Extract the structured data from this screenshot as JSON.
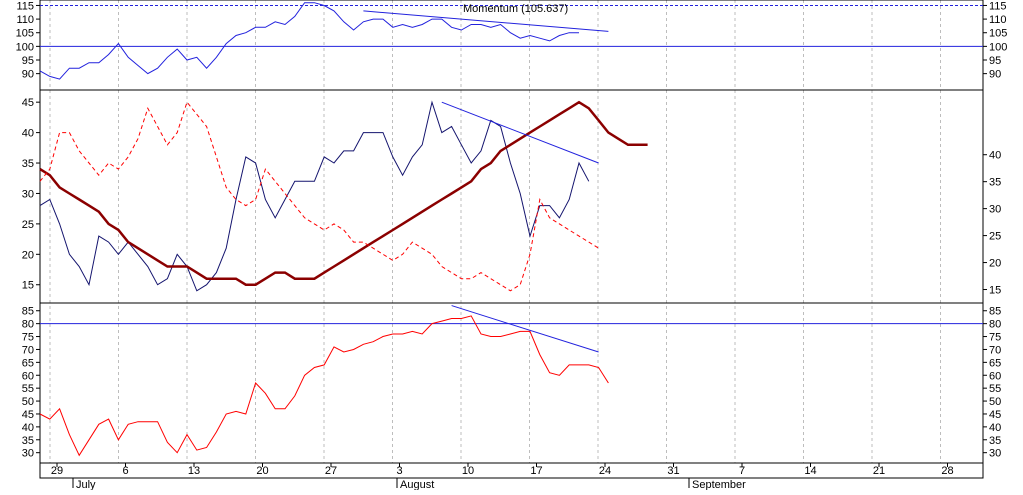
{
  "chart_data": {
    "type": "line",
    "x_axis": {
      "day_ticks": [
        "29",
        "6",
        "13",
        "20",
        "27",
        "3",
        "10",
        "17",
        "24",
        "31",
        "7",
        "14",
        "21",
        "28"
      ],
      "month_labels": [
        "July",
        "August",
        "September"
      ]
    },
    "panels": [
      {
        "id": "momentum",
        "title": "Momentum (105.637)",
        "ylim": [
          84,
          117
        ],
        "yticks": [
          90,
          95,
          100,
          105,
          110,
          115
        ],
        "reference_line": 100,
        "dashed_line": 115,
        "colors": {
          "series": "#2222dd",
          "reference": "#2222dd",
          "trend": "#2222dd"
        },
        "series": [
          {
            "values": [
              91,
              89,
              88,
              92,
              92,
              94,
              94,
              97,
              101,
              96,
              93,
              90,
              92,
              96,
              99,
              95,
              96,
              92,
              96,
              101,
              104,
              105,
              107,
              107,
              109,
              108,
              111,
              116,
              116,
              115,
              113,
              109,
              106,
              109,
              110,
              110,
              107,
              108,
              107,
              108,
              110,
              110,
              107,
              106,
              108,
              108,
              107,
              108,
              105,
              103,
              104,
              103,
              102,
              104,
              105,
              105
            ]
          }
        ],
        "trendlines": [
          {
            "from": [
              33,
              113
            ],
            "to": [
              58,
              105.5
            ]
          }
        ]
      },
      {
        "id": "price",
        "ylim": [
          12,
          47
        ],
        "left_yticks": [
          15,
          20,
          25,
          30,
          35,
          40,
          45
        ],
        "right_yticks": [
          15,
          20,
          25,
          30,
          35,
          40
        ],
        "colors": {
          "dark": "#14146e",
          "thick": "#8b0000",
          "dashed": "#ff0000",
          "trend": "#2222dd"
        },
        "series": [
          {
            "style": "thin-dark",
            "values": [
              28,
              29,
              25,
              20,
              18,
              15,
              23,
              22,
              20,
              22,
              20,
              18,
              15,
              16,
              20,
              18,
              14,
              15,
              17,
              21,
              29,
              36,
              35,
              29,
              26,
              29,
              32,
              32,
              32,
              36,
              35,
              37,
              37,
              40,
              40,
              40,
              36,
              33,
              36,
              38,
              45,
              40,
              41,
              38,
              35,
              37,
              42,
              41,
              35,
              30,
              23,
              28,
              28,
              26,
              29,
              35,
              32
            ]
          },
          {
            "style": "thick-dark-red",
            "values": [
              34,
              33,
              31,
              30,
              29,
              28,
              27,
              25,
              24,
              22,
              21,
              20,
              19,
              18,
              18,
              18,
              17,
              16,
              16,
              16,
              16,
              15,
              15,
              16,
              17,
              17,
              16,
              16,
              16,
              17,
              18,
              19,
              20,
              21,
              22,
              23,
              24,
              25,
              26,
              27,
              28,
              29,
              30,
              31,
              32,
              34,
              35,
              37,
              38,
              39,
              40,
              41,
              42,
              43,
              44,
              45,
              44,
              42,
              40,
              39,
              38,
              38,
              38
            ]
          },
          {
            "style": "dashed-red",
            "values": [
              32,
              34,
              40,
              40,
              37,
              35,
              33,
              35,
              34,
              36,
              39,
              44,
              41,
              38,
              40,
              45,
              43,
              41,
              36,
              31,
              29,
              28,
              29,
              34,
              32,
              30,
              28,
              26,
              25,
              24,
              25,
              24,
              22,
              22,
              21,
              20,
              19,
              20,
              22,
              21,
              20,
              18,
              17,
              16,
              16,
              17,
              16,
              15,
              14,
              15,
              20,
              29,
              26,
              25,
              24,
              23,
              22,
              21
            ]
          }
        ],
        "trendlines": [
          {
            "from": [
              41,
              45
            ],
            "to": [
              57,
              35
            ]
          }
        ]
      },
      {
        "id": "oscillator",
        "ylim": [
          26,
          88
        ],
        "yticks": [
          30,
          35,
          40,
          45,
          50,
          55,
          60,
          65,
          70,
          75,
          80,
          85
        ],
        "reference_line": 80,
        "colors": {
          "series": "#ff0000",
          "reference": "#2222dd",
          "trend": "#2222dd"
        },
        "series": [
          {
            "values": [
              45,
              43,
              47,
              37,
              29,
              35,
              41,
              43,
              35,
              41,
              42,
              42,
              42,
              34,
              30,
              37,
              31,
              32,
              38,
              45,
              46,
              45,
              57,
              53,
              47,
              47,
              52,
              60,
              63,
              64,
              71,
              69,
              70,
              72,
              73,
              75,
              76,
              76,
              77,
              76,
              80,
              81,
              82,
              82,
              83,
              76,
              75,
              75,
              76,
              77,
              77,
              68,
              61,
              60,
              64,
              64,
              64,
              63,
              57
            ]
          }
        ],
        "trendlines": [
          {
            "from": [
              42,
              87
            ],
            "to": [
              57,
              69
            ]
          }
        ]
      }
    ]
  }
}
